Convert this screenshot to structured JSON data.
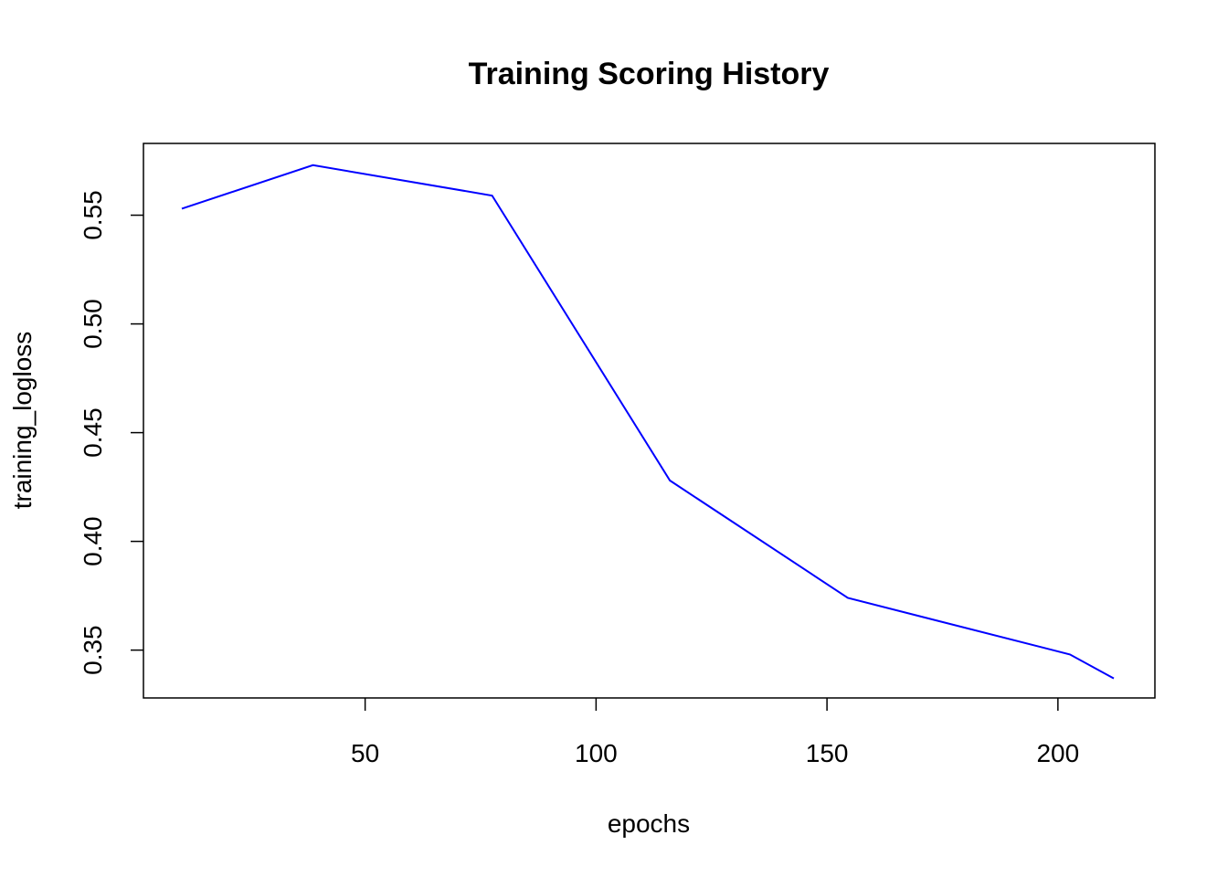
{
  "chart_data": {
    "type": "line",
    "title": "Training Scoring History",
    "xlabel": "epochs",
    "ylabel": "training_logloss",
    "xlim": [
      2,
      221
    ],
    "ylim": [
      0.328,
      0.583
    ],
    "x_ticks": [
      50,
      100,
      150,
      200
    ],
    "y_ticks": [
      0.35,
      0.4,
      0.45,
      0.5,
      0.55
    ],
    "y_tick_labels": [
      "0.35",
      "0.40",
      "0.45",
      "0.50",
      "0.55"
    ],
    "grid": false,
    "series": [
      {
        "color": "#0000ff",
        "x": [
          10.3,
          38.7,
          77.5,
          116.0,
          154.5,
          202.6,
          212.1
        ],
        "y": [
          0.553,
          0.573,
          0.559,
          0.428,
          0.374,
          0.348,
          0.337
        ]
      }
    ]
  }
}
